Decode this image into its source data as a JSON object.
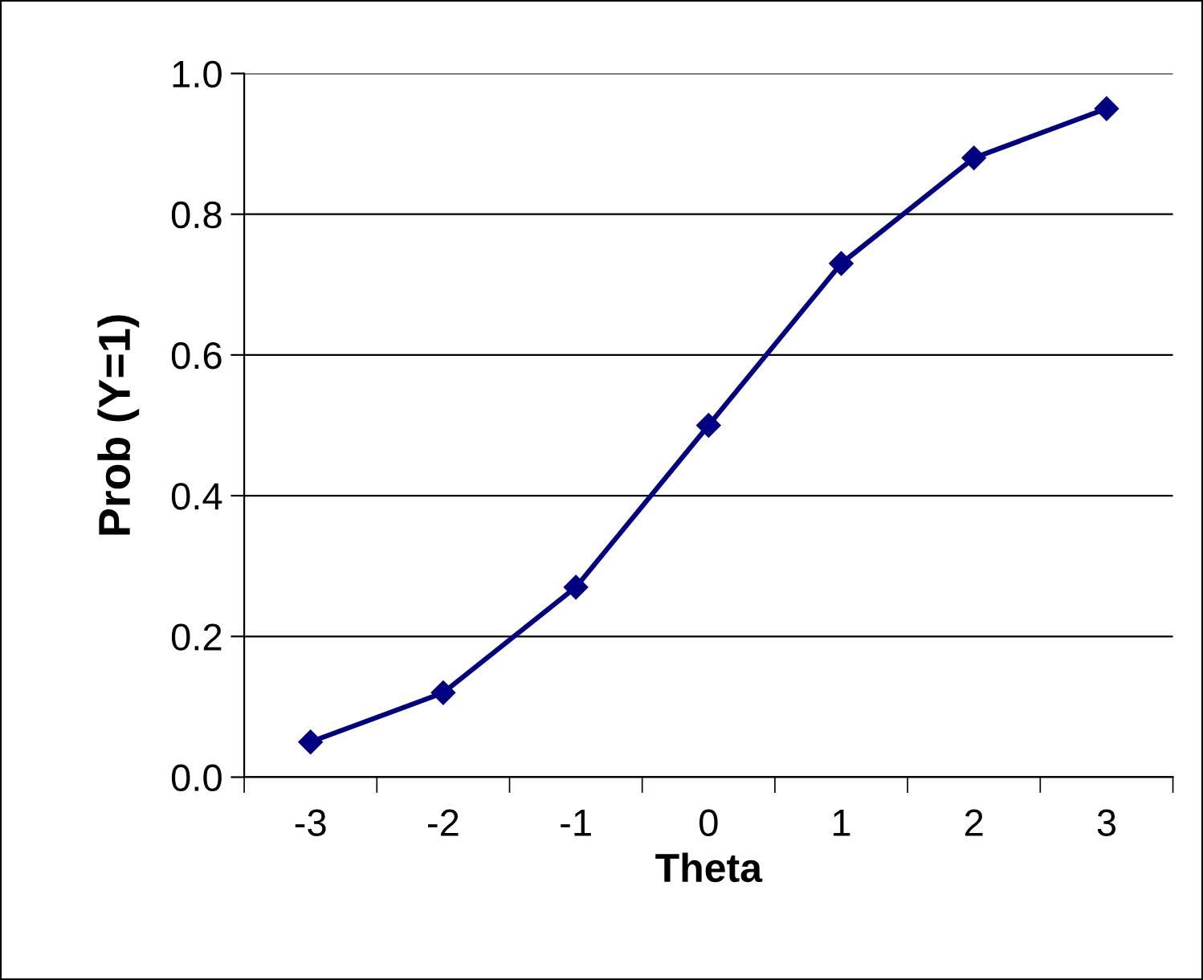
{
  "chart_data": {
    "type": "line",
    "xlabel": "Theta",
    "ylabel": "Prob (Y=1)",
    "categories": [
      "-3",
      "-2",
      "-1",
      "0",
      "1",
      "2",
      "3"
    ],
    "series": [
      {
        "color": "#000080",
        "values": [
          0.05,
          0.12,
          0.27,
          0.5,
          0.73,
          0.88,
          0.95
        ]
      }
    ],
    "ylim": [
      0.0,
      1.0
    ],
    "yticks": [
      {
        "value": 0.0,
        "label": "0.0"
      },
      {
        "value": 0.2,
        "label": "0.2"
      },
      {
        "value": 0.4,
        "label": "0.4"
      },
      {
        "value": 0.6,
        "label": "0.6"
      },
      {
        "value": 0.8,
        "label": "0.8"
      },
      {
        "value": 1.0,
        "label": "1.0"
      }
    ],
    "grid": "y",
    "marker": "diamond",
    "line_style": "solid",
    "legend": false
  }
}
